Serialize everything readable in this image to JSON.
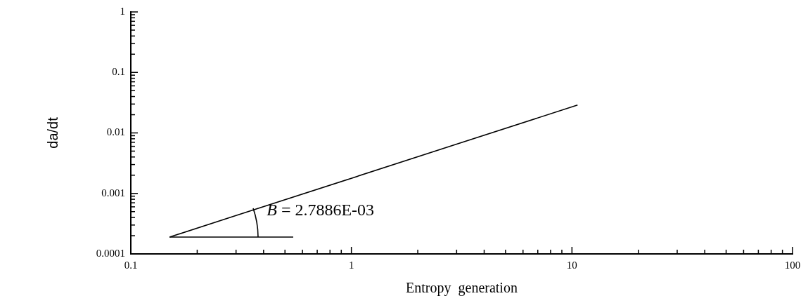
{
  "chart_data": {
    "type": "line",
    "xlabel": "Entropy  generation",
    "ylabel": "da/dt",
    "log": "xy",
    "grid": false,
    "legend": false,
    "marker": "none",
    "line_style": "solid",
    "x": [
      0.15,
      0.3,
      1,
      3,
      10.6
    ],
    "series": [
      {
        "color": "#000000",
        "values": [
          0.00019,
          0.00043,
          0.00178,
          0.00652,
          0.0289
        ]
      }
    ],
    "xlim": [
      0.1,
      100
    ],
    "xticks": [
      0.1,
      {
        "value": 0.2,
        "label": null
      },
      {
        "value": 0.3,
        "label": null
      },
      {
        "value": 0.4,
        "label": null
      },
      {
        "value": 0.5,
        "label": null
      },
      {
        "value": 0.6,
        "label": null
      },
      {
        "value": 0.7,
        "label": null
      },
      {
        "value": 0.8,
        "label": null
      },
      {
        "value": 0.9,
        "label": null
      },
      1,
      {
        "value": 2,
        "label": null
      },
      {
        "value": 3,
        "label": null
      },
      {
        "value": 4,
        "label": null
      },
      {
        "value": 5,
        "label": null
      },
      {
        "value": 6,
        "label": null
      },
      {
        "value": 7,
        "label": null
      },
      {
        "value": 8,
        "label": null
      },
      {
        "value": 9,
        "label": null
      },
      10,
      {
        "value": 20,
        "label": null
      },
      {
        "value": 30,
        "label": null
      },
      {
        "value": 40,
        "label": null
      },
      {
        "value": 50,
        "label": null
      },
      {
        "value": 60,
        "label": null
      },
      {
        "value": 70,
        "label": null
      },
      {
        "value": 80,
        "label": null
      },
      {
        "value": 90,
        "label": null
      },
      100
    ],
    "ylim": [
      0.0001,
      1
    ],
    "yticks": [
      0.0001,
      {
        "value": 0.0002,
        "label": null
      },
      {
        "value": 0.0003,
        "label": null
      },
      {
        "value": 0.0004,
        "label": null
      },
      {
        "value": 0.0005,
        "label": null
      },
      {
        "value": 0.0006,
        "label": null
      },
      {
        "value": 0.0007,
        "label": null
      },
      {
        "value": 0.0008,
        "label": null
      },
      {
        "value": 0.0009,
        "label": null
      },
      0.001,
      {
        "value": 0.002,
        "label": null
      },
      {
        "value": 0.003,
        "label": null
      },
      {
        "value": 0.004,
        "label": null
      },
      {
        "value": 0.005,
        "label": null
      },
      {
        "value": 0.006,
        "label": null
      },
      {
        "value": 0.007,
        "label": null
      },
      {
        "value": 0.008,
        "label": null
      },
      {
        "value": 0.009,
        "label": null
      },
      0.01,
      {
        "value": 0.02,
        "label": null
      },
      {
        "value": 0.03,
        "label": null
      },
      {
        "value": 0.04,
        "label": null
      },
      {
        "value": 0.05,
        "label": null
      },
      {
        "value": 0.06,
        "label": null
      },
      {
        "value": 0.07,
        "label": null
      },
      {
        "value": 0.08,
        "label": null
      },
      {
        "value": 0.09,
        "label": null
      },
      0.1,
      {
        "value": 0.2,
        "label": null
      },
      {
        "value": 0.3,
        "label": null
      },
      {
        "value": 0.4,
        "label": null
      },
      {
        "value": 0.5,
        "label": null
      },
      {
        "value": 0.6,
        "label": null
      },
      {
        "value": 0.7,
        "label": null
      },
      {
        "value": 0.8,
        "label": null
      },
      {
        "value": 0.9,
        "label": null
      },
      1
    ],
    "annotations": [
      {
        "text": "B = 2.7886E-03",
        "x": 0.15,
        "y": 0.00019
      }
    ]
  }
}
